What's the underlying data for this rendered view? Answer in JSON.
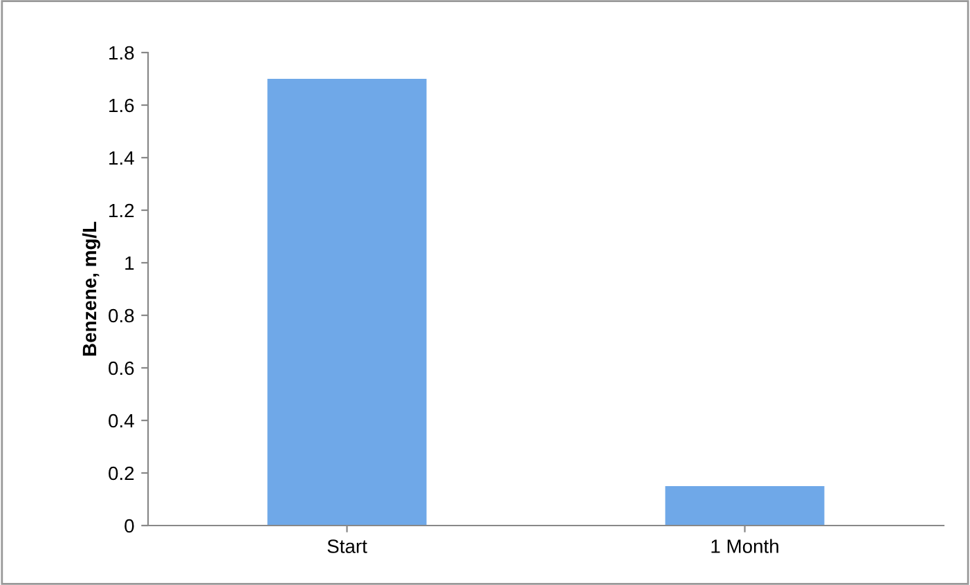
{
  "chart_data": {
    "type": "bar",
    "ylabel": "Benzene, mg/L",
    "categories": [
      "Start",
      "1 Month"
    ],
    "values": [
      1.7,
      0.15
    ],
    "color": "#6fa8e8",
    "ylim": [
      0,
      1.8
    ],
    "yticks": [
      0,
      0.2,
      0.4,
      0.6,
      0.8,
      1,
      1.2,
      1.4,
      1.6,
      1.8
    ],
    "grid": false,
    "legend": false
  }
}
